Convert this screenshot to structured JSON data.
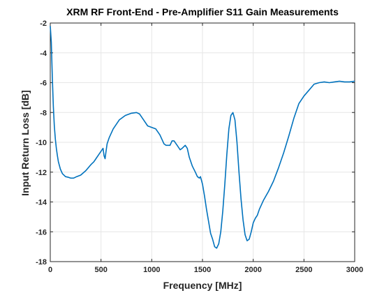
{
  "chart_data": {
    "type": "line",
    "title": "XRM RF Front-End - Pre-Amplifier S11 Gain Measurements",
    "xlabel": "Frequency [MHz]",
    "ylabel": "Input Return Loss [dB]",
    "xlim": [
      0,
      3000
    ],
    "ylim": [
      -18,
      -2
    ],
    "xticks": [
      0,
      500,
      1000,
      1500,
      2000,
      2500,
      3000
    ],
    "yticks": [
      -18,
      -16,
      -14,
      -12,
      -10,
      -8,
      -6,
      -4,
      -2
    ],
    "grid": true,
    "line_color": "#0072BD",
    "series": [
      {
        "x": [
          0,
          10,
          20,
          30,
          40,
          50,
          60,
          70,
          80,
          100,
          120,
          150,
          180,
          200,
          230,
          260,
          300,
          350,
          400,
          430,
          450,
          480,
          500,
          520,
          530,
          540,
          550,
          560,
          580,
          620,
          680,
          740,
          800,
          850,
          880,
          920,
          960,
          1000,
          1040,
          1080,
          1100,
          1120,
          1140,
          1160,
          1180,
          1200,
          1220,
          1250,
          1280,
          1300,
          1330,
          1350,
          1370,
          1400,
          1430,
          1450,
          1470,
          1480,
          1500,
          1520,
          1540,
          1560,
          1580,
          1600,
          1620,
          1640,
          1660,
          1680,
          1700,
          1720,
          1740,
          1760,
          1780,
          1800,
          1820,
          1840,
          1860,
          1880,
          1900,
          1920,
          1940,
          1960,
          1980,
          2000,
          2020,
          2040,
          2060,
          2080,
          2100,
          2150,
          2200,
          2250,
          2300,
          2350,
          2400,
          2450,
          2500,
          2550,
          2600,
          2650,
          2700,
          2750,
          2800,
          2850,
          2900,
          2950,
          3000
        ],
        "y": [
          -2.2,
          -3.3,
          -5.6,
          -7.6,
          -8.9,
          -9.8,
          -10.4,
          -10.9,
          -11.3,
          -11.8,
          -12.1,
          -12.3,
          -12.35,
          -12.4,
          -12.4,
          -12.3,
          -12.2,
          -11.9,
          -11.5,
          -11.3,
          -11.1,
          -10.8,
          -10.6,
          -10.4,
          -10.9,
          -11.1,
          -10.6,
          -10.1,
          -9.7,
          -9.1,
          -8.5,
          -8.2,
          -8.05,
          -8.0,
          -8.1,
          -8.5,
          -8.9,
          -9.0,
          -9.1,
          -9.5,
          -9.8,
          -10.1,
          -10.2,
          -10.2,
          -10.2,
          -9.9,
          -9.9,
          -10.2,
          -10.5,
          -10.4,
          -10.2,
          -10.4,
          -11.0,
          -11.6,
          -12.0,
          -12.3,
          -12.4,
          -12.3,
          -12.8,
          -13.6,
          -14.5,
          -15.3,
          -16.1,
          -16.5,
          -17.0,
          -17.1,
          -16.8,
          -16.0,
          -14.6,
          -12.8,
          -10.8,
          -9.1,
          -8.2,
          -8.0,
          -8.5,
          -10.0,
          -12.0,
          -13.8,
          -15.2,
          -16.2,
          -16.6,
          -16.5,
          -16.0,
          -15.4,
          -15.1,
          -14.9,
          -14.5,
          -14.2,
          -13.9,
          -13.3,
          -12.6,
          -11.7,
          -10.7,
          -9.6,
          -8.4,
          -7.4,
          -6.9,
          -6.5,
          -6.1,
          -6.0,
          -5.95,
          -6.0,
          -5.95,
          -5.9,
          -5.95,
          -5.95,
          -5.9
        ]
      }
    ]
  }
}
